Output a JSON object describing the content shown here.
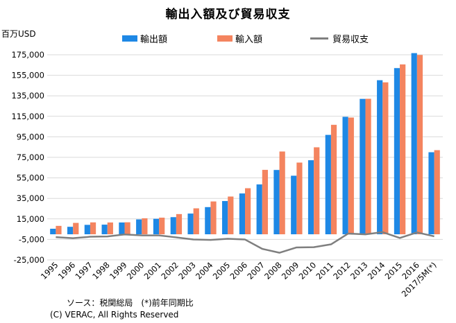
{
  "chart_data": {
    "type": "bar",
    "title": "輸出入額及び貿易収支",
    "unit_label": "百万USD",
    "categories": [
      "1995",
      "1996",
      "1997",
      "1998",
      "1999",
      "2000",
      "2001",
      "2002",
      "2003",
      "2004",
      "2005",
      "2006",
      "2007",
      "2008",
      "2009",
      "2010",
      "2011",
      "2012",
      "2013",
      "2014",
      "2015",
      "2016",
      "2017/5M(*)"
    ],
    "series": [
      {
        "name": "輸出額",
        "kind": "bar",
        "color": "#1E88E5",
        "values": [
          5400,
          7300,
          9200,
          9400,
          11500,
          14500,
          15100,
          16700,
          20200,
          26500,
          32400,
          39800,
          48600,
          62700,
          57100,
          72200,
          96900,
          114500,
          132000,
          150200,
          162000,
          176600,
          80000
        ]
      },
      {
        "name": "輸入額",
        "kind": "bar",
        "color": "#F4845F",
        "values": [
          8200,
          11100,
          11600,
          11500,
          11700,
          15600,
          16200,
          19700,
          25300,
          32000,
          36800,
          44900,
          62800,
          80700,
          69900,
          84800,
          106700,
          113800,
          132100,
          148100,
          165600,
          174800,
          82000
        ]
      },
      {
        "name": "貿易収支",
        "kind": "line",
        "color": "#7F7F7F",
        "values": [
          -2800,
          -3800,
          -2400,
          -2100,
          -200,
          -1100,
          -1100,
          -3000,
          -5100,
          -5500,
          -4400,
          -5100,
          -14200,
          -18000,
          -12800,
          -12600,
          -9800,
          700,
          -100,
          2100,
          -3600,
          1800,
          -2000
        ]
      }
    ],
    "ylim": [
      -25000,
      175000
    ],
    "yticks": [
      "175,000",
      "155,000",
      "135,000",
      "115,000",
      "95,000",
      "75,000",
      "55,000",
      "35,000",
      "15,000",
      "-5,000",
      "-25,000"
    ],
    "ytick_values": [
      175000,
      155000,
      135000,
      115000,
      95000,
      75000,
      55000,
      35000,
      15000,
      -5000,
      -25000
    ],
    "grid": true,
    "legend_position": "top"
  },
  "footer": {
    "source": "ソース：税関総局　(*)前年同期比",
    "copyright": "(C) VERAC, All Rights Reserved"
  }
}
